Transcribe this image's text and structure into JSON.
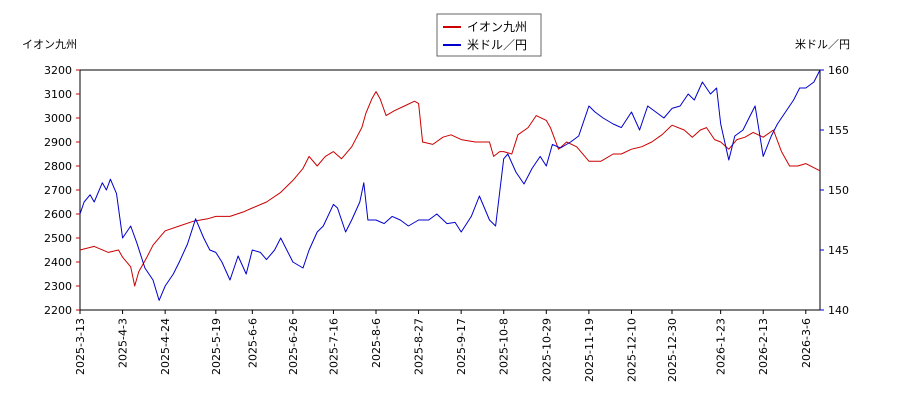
{
  "chart_data": {
    "type": "line",
    "legend_position": "top-center",
    "grid": false,
    "left_axis": {
      "label": "イオン九州",
      "range": [
        2200,
        3200
      ],
      "ticks": [
        "2200",
        "2300",
        "2400",
        "2500",
        "2600",
        "2700",
        "2800",
        "2900",
        "3000",
        "3100",
        "3200"
      ],
      "color": "#cc0000"
    },
    "right_axis": {
      "label": "米ドル／円",
      "range": [
        140,
        160
      ],
      "ticks": [
        "140",
        "145",
        "150",
        "155",
        "160"
      ],
      "color": "#0000cc"
    },
    "x_range": [
      "2025-03-13",
      "2026-03-13"
    ],
    "x_ticks": [
      "2025-3-13",
      "2025-4-3",
      "2025-4-24",
      "2025-5-19",
      "2025-6-6",
      "2025-6-26",
      "2025-7-16",
      "2025-8-6",
      "2025-8-27",
      "2025-9-17",
      "2025-10-8",
      "2025-10-29",
      "2025-11-19",
      "2025-12-10",
      "2025-12-30",
      "2026-1-23",
      "2026-2-13",
      "2026-3-6"
    ],
    "series": [
      {
        "name": "イオン九州",
        "axis": "left",
        "color": "#cc0000",
        "points": [
          [
            "2025-03-13",
            2450
          ],
          [
            "2025-03-20",
            2465
          ],
          [
            "2025-03-27",
            2440
          ],
          [
            "2025-04-01",
            2450
          ],
          [
            "2025-04-03",
            2420
          ],
          [
            "2025-04-07",
            2380
          ],
          [
            "2025-04-09",
            2300
          ],
          [
            "2025-04-11",
            2360
          ],
          [
            "2025-04-15",
            2420
          ],
          [
            "2025-04-18",
            2470
          ],
          [
            "2025-04-22",
            2510
          ],
          [
            "2025-04-24",
            2530
          ],
          [
            "2025-05-01",
            2550
          ],
          [
            "2025-05-08",
            2570
          ],
          [
            "2025-05-15",
            2580
          ],
          [
            "2025-05-19",
            2590
          ],
          [
            "2025-05-26",
            2590
          ],
          [
            "2025-06-02",
            2610
          ],
          [
            "2025-06-06",
            2625
          ],
          [
            "2025-06-13",
            2650
          ],
          [
            "2025-06-20",
            2690
          ],
          [
            "2025-06-26",
            2740
          ],
          [
            "2025-07-01",
            2790
          ],
          [
            "2025-07-04",
            2840
          ],
          [
            "2025-07-08",
            2800
          ],
          [
            "2025-07-12",
            2840
          ],
          [
            "2025-07-16",
            2860
          ],
          [
            "2025-07-20",
            2830
          ],
          [
            "2025-07-25",
            2880
          ],
          [
            "2025-07-30",
            2960
          ],
          [
            "2025-08-01",
            3020
          ],
          [
            "2025-08-04",
            3080
          ],
          [
            "2025-08-06",
            3110
          ],
          [
            "2025-08-08",
            3080
          ],
          [
            "2025-08-11",
            3010
          ],
          [
            "2025-08-15",
            3030
          ],
          [
            "2025-08-20",
            3050
          ],
          [
            "2025-08-25",
            3070
          ],
          [
            "2025-08-27",
            3060
          ],
          [
            "2025-08-29",
            2900
          ],
          [
            "2025-09-03",
            2890
          ],
          [
            "2025-09-08",
            2920
          ],
          [
            "2025-09-12",
            2930
          ],
          [
            "2025-09-17",
            2910
          ],
          [
            "2025-09-24",
            2900
          ],
          [
            "2025-10-01",
            2900
          ],
          [
            "2025-10-03",
            2840
          ],
          [
            "2025-10-06",
            2860
          ],
          [
            "2025-10-08",
            2860
          ],
          [
            "2025-10-12",
            2850
          ],
          [
            "2025-10-15",
            2930
          ],
          [
            "2025-10-20",
            2960
          ],
          [
            "2025-10-24",
            3010
          ],
          [
            "2025-10-29",
            2990
          ],
          [
            "2025-10-31",
            2960
          ],
          [
            "2025-11-04",
            2870
          ],
          [
            "2025-11-08",
            2900
          ],
          [
            "2025-11-13",
            2880
          ],
          [
            "2025-11-19",
            2820
          ],
          [
            "2025-11-25",
            2820
          ],
          [
            "2025-12-01",
            2850
          ],
          [
            "2025-12-05",
            2850
          ],
          [
            "2025-12-10",
            2870
          ],
          [
            "2025-12-15",
            2880
          ],
          [
            "2025-12-20",
            2900
          ],
          [
            "2025-12-25",
            2930
          ],
          [
            "2025-12-30",
            2970
          ],
          [
            "2026-01-05",
            2950
          ],
          [
            "2026-01-09",
            2920
          ],
          [
            "2026-01-13",
            2950
          ],
          [
            "2026-01-16",
            2960
          ],
          [
            "2026-01-20",
            2910
          ],
          [
            "2026-01-23",
            2900
          ],
          [
            "2026-01-27",
            2870
          ],
          [
            "2026-01-31",
            2910
          ],
          [
            "2026-02-04",
            2920
          ],
          [
            "2026-02-08",
            2940
          ],
          [
            "2026-02-13",
            2920
          ],
          [
            "2026-02-18",
            2950
          ],
          [
            "2026-02-22",
            2860
          ],
          [
            "2026-02-26",
            2800
          ],
          [
            "2026-03-02",
            2800
          ],
          [
            "2026-03-06",
            2810
          ],
          [
            "2026-03-13",
            2780
          ]
        ]
      },
      {
        "name": "米ドル／円",
        "axis": "right",
        "color": "#0000cc",
        "points": [
          [
            "2025-03-13",
            148.0
          ],
          [
            "2025-03-15",
            149.0
          ],
          [
            "2025-03-18",
            149.6
          ],
          [
            "2025-03-20",
            149.0
          ],
          [
            "2025-03-24",
            150.6
          ],
          [
            "2025-03-26",
            150.0
          ],
          [
            "2025-03-28",
            150.9
          ],
          [
            "2025-03-31",
            149.7
          ],
          [
            "2025-04-03",
            146.0
          ],
          [
            "2025-04-07",
            147.0
          ],
          [
            "2025-04-10",
            145.6
          ],
          [
            "2025-04-14",
            143.5
          ],
          [
            "2025-04-18",
            142.5
          ],
          [
            "2025-04-21",
            140.8
          ],
          [
            "2025-04-24",
            142.0
          ],
          [
            "2025-04-28",
            143.0
          ],
          [
            "2025-05-01",
            144.0
          ],
          [
            "2025-05-05",
            145.5
          ],
          [
            "2025-05-09",
            147.6
          ],
          [
            "2025-05-13",
            146.0
          ],
          [
            "2025-05-16",
            145.0
          ],
          [
            "2025-05-19",
            144.8
          ],
          [
            "2025-05-22",
            144.0
          ],
          [
            "2025-05-26",
            142.5
          ],
          [
            "2025-05-30",
            144.5
          ],
          [
            "2025-06-03",
            143.0
          ],
          [
            "2025-06-06",
            145.0
          ],
          [
            "2025-06-10",
            144.8
          ],
          [
            "2025-06-13",
            144.2
          ],
          [
            "2025-06-17",
            145.0
          ],
          [
            "2025-06-20",
            146.0
          ],
          [
            "2025-06-26",
            144.0
          ],
          [
            "2025-07-01",
            143.5
          ],
          [
            "2025-07-04",
            145.0
          ],
          [
            "2025-07-08",
            146.5
          ],
          [
            "2025-07-11",
            147.0
          ],
          [
            "2025-07-16",
            148.8
          ],
          [
            "2025-07-18",
            148.5
          ],
          [
            "2025-07-22",
            146.5
          ],
          [
            "2025-07-25",
            147.5
          ],
          [
            "2025-07-29",
            149.0
          ],
          [
            "2025-07-31",
            150.6
          ],
          [
            "2025-08-02",
            147.5
          ],
          [
            "2025-08-06",
            147.5
          ],
          [
            "2025-08-10",
            147.2
          ],
          [
            "2025-08-14",
            147.8
          ],
          [
            "2025-08-18",
            147.5
          ],
          [
            "2025-08-22",
            147.0
          ],
          [
            "2025-08-27",
            147.5
          ],
          [
            "2025-09-01",
            147.5
          ],
          [
            "2025-09-05",
            148.0
          ],
          [
            "2025-09-10",
            147.2
          ],
          [
            "2025-09-14",
            147.3
          ],
          [
            "2025-09-17",
            146.5
          ],
          [
            "2025-09-22",
            147.8
          ],
          [
            "2025-09-26",
            149.5
          ],
          [
            "2025-10-01",
            147.5
          ],
          [
            "2025-10-04",
            147.0
          ],
          [
            "2025-10-08",
            152.6
          ],
          [
            "2025-10-10",
            153.0
          ],
          [
            "2025-10-14",
            151.5
          ],
          [
            "2025-10-18",
            150.5
          ],
          [
            "2025-10-22",
            151.8
          ],
          [
            "2025-10-26",
            152.8
          ],
          [
            "2025-10-29",
            152.0
          ],
          [
            "2025-11-01",
            153.8
          ],
          [
            "2025-11-05",
            153.5
          ],
          [
            "2025-11-10",
            154.0
          ],
          [
            "2025-11-14",
            154.5
          ],
          [
            "2025-11-19",
            157.0
          ],
          [
            "2025-11-22",
            156.5
          ],
          [
            "2025-11-26",
            156.0
          ],
          [
            "2025-12-01",
            155.5
          ],
          [
            "2025-12-05",
            155.2
          ],
          [
            "2025-12-10",
            156.5
          ],
          [
            "2025-12-14",
            155.0
          ],
          [
            "2025-12-18",
            157.0
          ],
          [
            "2025-12-22",
            156.5
          ],
          [
            "2025-12-26",
            156.0
          ],
          [
            "2025-12-30",
            156.8
          ],
          [
            "2026-01-03",
            157.0
          ],
          [
            "2026-01-07",
            158.0
          ],
          [
            "2026-01-10",
            157.5
          ],
          [
            "2026-01-14",
            159.0
          ],
          [
            "2026-01-18",
            158.0
          ],
          [
            "2026-01-21",
            158.5
          ],
          [
            "2026-01-23",
            155.5
          ],
          [
            "2026-01-27",
            152.5
          ],
          [
            "2026-01-30",
            154.5
          ],
          [
            "2026-02-03",
            155.0
          ],
          [
            "2026-02-06",
            156.0
          ],
          [
            "2026-02-09",
            157.0
          ],
          [
            "2026-02-13",
            152.8
          ],
          [
            "2026-02-17",
            154.5
          ],
          [
            "2026-02-20",
            155.5
          ],
          [
            "2026-02-24",
            156.5
          ],
          [
            "2026-02-28",
            157.5
          ],
          [
            "2026-03-03",
            158.5
          ],
          [
            "2026-03-06",
            158.5
          ],
          [
            "2026-03-10",
            159.0
          ],
          [
            "2026-03-13",
            160.0
          ]
        ]
      }
    ]
  }
}
